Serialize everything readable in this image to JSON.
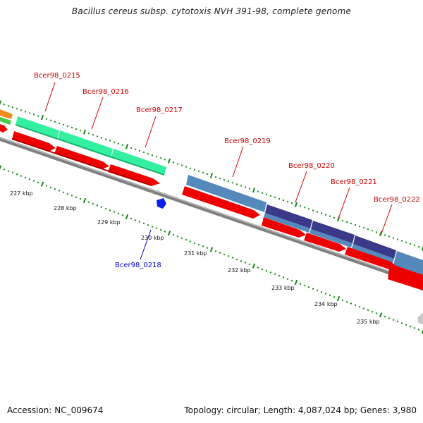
{
  "title": "Bacillus cereus subsp. cytotoxis NVH 391-98, complete genome",
  "footer": {
    "accession": "Accession: NC_009674",
    "stats": "Topology: circular; Length: 4,087,024 bp; Genes: 3,980"
  },
  "colors": {
    "forward_label": "#cc0000",
    "reverse_label": "#0000cc",
    "cds": "#ee0000",
    "gene_green": "#33f0a0",
    "gene_steel": "#5588bb",
    "gene_indigo": "#3a3a88",
    "tick": "#118811",
    "backbone": "#888888",
    "orange": "#f08c1a"
  },
  "gene_labels": [
    {
      "name": "Bcer98_0215",
      "strand": "forward"
    },
    {
      "name": "Bcer98_0216",
      "strand": "forward"
    },
    {
      "name": "Bcer98_0217",
      "strand": "forward"
    },
    {
      "name": "Bcer98_0219",
      "strand": "forward"
    },
    {
      "name": "Bcer98_0220",
      "strand": "forward"
    },
    {
      "name": "Bcer98_0221",
      "strand": "forward"
    },
    {
      "name": "Bcer98_0222",
      "strand": "forward"
    },
    {
      "name": "Bcer98_0218",
      "strand": "reverse"
    }
  ],
  "kbp_ticks": [
    "227 kbp",
    "228 kbp",
    "229 kbp",
    "230 kbp",
    "231 kbp",
    "232 kbp",
    "233 kbp",
    "234 kbp",
    "235 kbp"
  ]
}
